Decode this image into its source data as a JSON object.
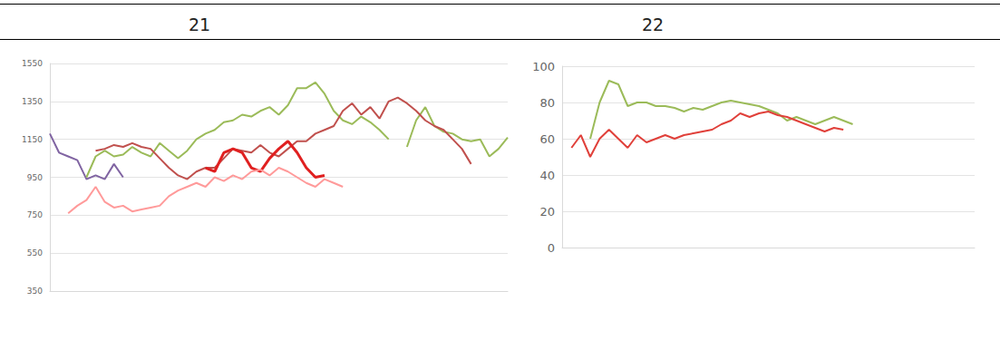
{
  "chart_data": [
    {
      "type": "line",
      "title": "21",
      "categories": [
        null,
        null,
        null,
        null,
        null,
        null,
        null,
        null,
        null,
        null,
        null,
        null,
        null,
        null,
        null,
        null,
        null,
        null,
        null,
        null,
        null,
        null,
        null,
        null,
        null,
        null,
        null,
        null,
        null,
        null,
        null,
        null,
        null,
        null,
        null,
        null,
        null,
        null,
        null,
        null,
        null,
        null,
        null,
        null,
        null,
        null,
        null,
        null,
        null,
        null,
        null
      ],
      "ylim": [
        350,
        1550
      ],
      "yticks": [
        350,
        550,
        750,
        950,
        1150,
        1350,
        1550
      ],
      "grid": true,
      "tick_labels": "y",
      "series": [
        {
          "color": "#8064a2",
          "values": [
            1180,
            1080,
            1060,
            1040,
            940,
            960,
            940,
            1020,
            950,
            null,
            null,
            null,
            null,
            null,
            null,
            null,
            null,
            null,
            null,
            null,
            null,
            null,
            null,
            null,
            null,
            null,
            null,
            null,
            null,
            null,
            null,
            null,
            null,
            null,
            null,
            null,
            null,
            null,
            null,
            null,
            null,
            null,
            null,
            null,
            null,
            null,
            null,
            null,
            null,
            null,
            null
          ]
        },
        {
          "color": "#9bbb59",
          "values": [
            null,
            null,
            null,
            null,
            950,
            1060,
            1090,
            1060,
            1070,
            1110,
            1080,
            1060,
            1130,
            1090,
            1050,
            1090,
            1150,
            1180,
            1200,
            1240,
            1250,
            1280,
            1270,
            1300,
            1320,
            1280,
            1330,
            1420,
            1420,
            1450,
            1390,
            1300,
            1250,
            1230,
            1270,
            1240,
            1200,
            1150,
            null,
            1110,
            1250,
            1320,
            1220,
            1190,
            1180,
            1150,
            1140,
            1150,
            1060,
            1100,
            1160
          ]
        },
        {
          "color": "#c0504d",
          "values": [
            null,
            null,
            null,
            null,
            null,
            1090,
            1100,
            1120,
            1110,
            1130,
            1110,
            1100,
            1050,
            1000,
            960,
            940,
            980,
            1000,
            1000,
            1050,
            1100,
            1090,
            1080,
            1120,
            1080,
            1060,
            1100,
            1140,
            1140,
            1180,
            1200,
            1220,
            1300,
            1340,
            1280,
            1320,
            1260,
            1350,
            1370,
            1340,
            1300,
            1250,
            1220,
            1200,
            1150,
            1100,
            1020,
            null,
            null,
            null,
            null
          ]
        },
        {
          "color": "#e02020",
          "line_style": "thick",
          "values": [
            null,
            null,
            null,
            null,
            null,
            null,
            null,
            null,
            null,
            null,
            null,
            null,
            null,
            null,
            null,
            null,
            null,
            1000,
            980,
            1080,
            1100,
            1080,
            1000,
            980,
            1050,
            1100,
            1140,
            1080,
            1000,
            950,
            960,
            null,
            null,
            null,
            null,
            null,
            null,
            null,
            null,
            null,
            null,
            null,
            null,
            null,
            null,
            null,
            null,
            null,
            null,
            null,
            null
          ]
        },
        {
          "color": "#ff9a9a",
          "values": [
            null,
            null,
            760,
            800,
            830,
            900,
            820,
            790,
            800,
            770,
            780,
            790,
            800,
            850,
            880,
            900,
            920,
            900,
            950,
            930,
            960,
            940,
            980,
            990,
            960,
            1000,
            980,
            950,
            920,
            900,
            940,
            920,
            900,
            null,
            null,
            null,
            null,
            null,
            null,
            null,
            null,
            null,
            null,
            null,
            null,
            null,
            null,
            null,
            null,
            null,
            null
          ]
        }
      ]
    },
    {
      "type": "line",
      "title": "22",
      "categories": [
        null,
        null,
        null,
        null,
        null,
        null,
        null,
        null,
        null,
        null,
        null,
        null,
        null,
        null,
        null,
        null,
        null,
        null,
        null,
        null,
        null,
        null,
        null,
        null,
        null,
        null,
        null,
        null,
        null,
        null,
        null,
        null,
        null,
        null,
        null,
        null,
        null,
        null,
        null,
        null,
        null,
        null,
        null,
        null,
        null
      ],
      "ylim": [
        0,
        100
      ],
      "yticks": [
        0,
        20,
        40,
        60,
        80,
        100
      ],
      "grid": true,
      "tick_labels": "y",
      "series": [
        {
          "color": "#9bbb59",
          "values": [
            null,
            null,
            null,
            60,
            80,
            92,
            90,
            78,
            80,
            80,
            78,
            78,
            77,
            75,
            77,
            76,
            78,
            80,
            81,
            80,
            79,
            78,
            76,
            74,
            70,
            72,
            70,
            68,
            70,
            72,
            70,
            68,
            null,
            null,
            null,
            null,
            null,
            null,
            null,
            null,
            null,
            null,
            null,
            null,
            null
          ]
        },
        {
          "color": "#e0403a",
          "values": [
            null,
            55,
            62,
            50,
            60,
            65,
            60,
            55,
            62,
            58,
            60,
            62,
            60,
            62,
            63,
            64,
            65,
            68,
            70,
            74,
            72,
            74,
            75,
            73,
            72,
            70,
            68,
            66,
            64,
            66,
            65,
            null,
            null,
            null,
            null,
            null,
            null,
            null,
            null,
            null,
            null,
            null,
            null,
            null,
            null
          ]
        }
      ]
    }
  ]
}
